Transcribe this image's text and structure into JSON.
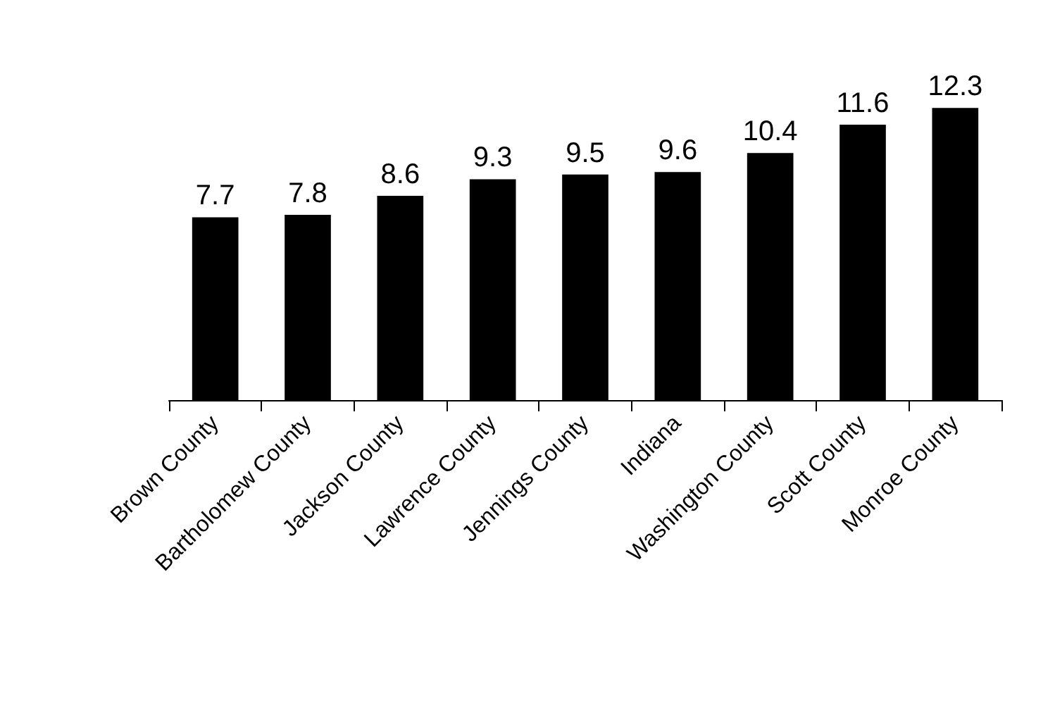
{
  "chart_data": {
    "type": "bar",
    "categories": [
      "Brown County",
      "Bartholomew County",
      "Jackson County",
      "Lawrence County",
      "Jennings County",
      "Indiana",
      "Washington County",
      "Scott County",
      "Monroe County"
    ],
    "values": [
      7.7,
      7.8,
      8.6,
      9.3,
      9.5,
      9.6,
      10.4,
      11.6,
      12.3
    ],
    "color": "#000000",
    "data_labels": true
  }
}
